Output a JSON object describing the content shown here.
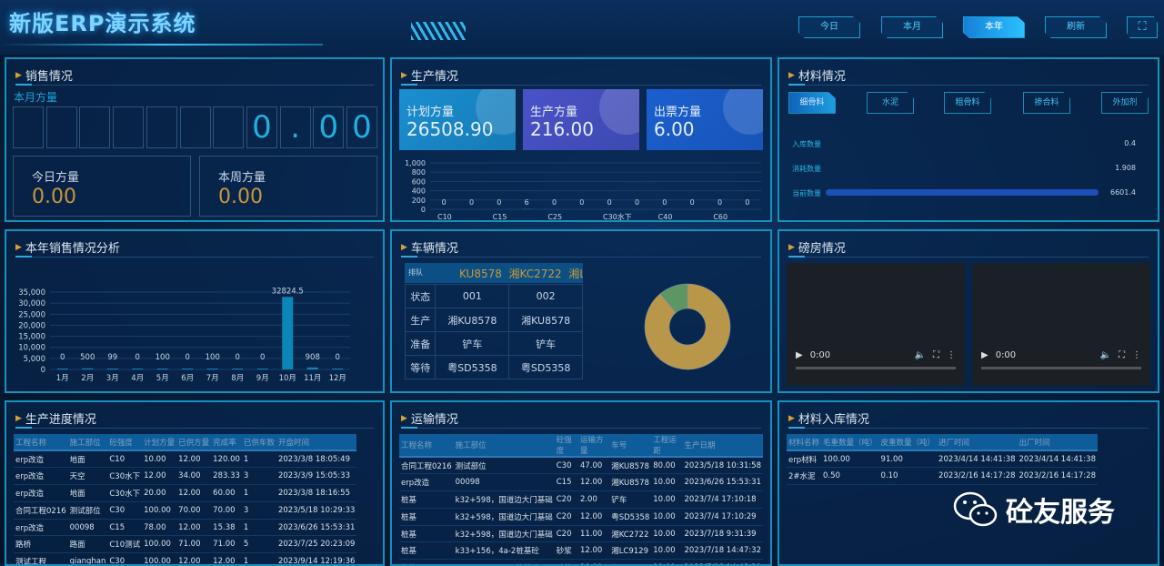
{
  "header": {
    "title": "新版ERP演示系统",
    "buttons": [
      {
        "label": "今日"
      },
      {
        "label": "本月"
      },
      {
        "label": "本年",
        "active": true
      },
      {
        "label": "刷新"
      }
    ],
    "fullscreen_icon": "expand-icon"
  },
  "sales": {
    "title": "销售情况",
    "month_label": "本月方量",
    "month_digits": [
      "",
      "",
      "",
      "",
      "",
      "",
      "",
      "0",
      ".",
      "0",
      "0"
    ],
    "today_label": "今日方量",
    "today_value": "0.00",
    "week_label": "本周方量",
    "week_value": "0.00"
  },
  "production": {
    "title": "生产情况",
    "cards": [
      {
        "label": "计划方量",
        "value": "26508.90",
        "color": "#1a8fd0"
      },
      {
        "label": "生产方量",
        "value": "216.00",
        "color": "#4a52c8"
      },
      {
        "label": "出票方量",
        "value": "6.00",
        "color": "#1b5fd0"
      }
    ]
  },
  "materials": {
    "title": "材料情况",
    "tabs": [
      {
        "label": "细骨料",
        "active": true
      },
      {
        "label": "水泥"
      },
      {
        "label": "粗骨料"
      },
      {
        "label": "掺合料"
      },
      {
        "label": "外加剂"
      }
    ],
    "rows": [
      {
        "label": "入库数量",
        "value": "0.4"
      },
      {
        "label": "消耗数量",
        "value": "1.908"
      },
      {
        "label": "当前数量",
        "value": "6601.4",
        "bar": 1.0
      }
    ]
  },
  "annual": {
    "title": "本年销售情况分析"
  },
  "vehicles": {
    "title": "车辆情况",
    "queue_label": "排队",
    "queue_scroll": "KU8578  湘KC2722  湘L",
    "rows": [
      [
        "状态",
        "001",
        "002"
      ],
      [
        "生产",
        "湘KU8578",
        "湘KU8578"
      ],
      [
        "准备",
        "铲车",
        "铲车"
      ],
      [
        "等待",
        "粤SD5358",
        "粤SD5358"
      ]
    ],
    "donut": [
      {
        "share": 0.89,
        "color": "#b8974a"
      },
      {
        "share": 0.11,
        "color": "#5e9565"
      }
    ]
  },
  "scale": {
    "title": "磅房情况",
    "videos": [
      {
        "time": "0:00"
      },
      {
        "time": "0:00"
      }
    ]
  },
  "progress": {
    "title": "生产进度情况",
    "columns": [
      "工程名称",
      "施工部位",
      "砼强度",
      "计划方量",
      "已供方量",
      "完成率",
      "已供车数",
      "开盘时间"
    ],
    "rows": [
      [
        "erp改造",
        "地面",
        "C10",
        "10.00",
        "12.00",
        "120.00",
        "1",
        "2023/3/8 18:05:49"
      ],
      [
        "erp改造",
        "天空",
        "C30水下",
        "12.00",
        "34.00",
        "283.33",
        "3",
        "2023/3/9 15:05:33"
      ],
      [
        "erp改造",
        "地面",
        "C30水下",
        "20.00",
        "12.00",
        "60.00",
        "1",
        "2023/3/8 18:16:55"
      ],
      [
        "合同工程0216",
        "测试部位",
        "C30",
        "100.00",
        "70.00",
        "70.00",
        "3",
        "2023/5/18 10:29:33"
      ],
      [
        "erp改造",
        "00098",
        "C15",
        "78.00",
        "12.00",
        "15.38",
        "1",
        "2023/6/26 15:53:31"
      ],
      [
        "路桥",
        "路面",
        "C10测试",
        "100.00",
        "71.00",
        "71.00",
        "5",
        "2023/7/25 20:23:09"
      ],
      [
        "测试工程",
        "qianghan",
        "C30",
        "100.00",
        "12.00",
        "12.00",
        "1",
        "2023/9/14 12:19:36"
      ]
    ]
  },
  "transport": {
    "title": "运输情况",
    "columns": [
      "工程名称",
      "施工部位",
      "砼强度",
      "运输方量",
      "车号",
      "工程运距",
      "生产日期"
    ],
    "rows": [
      [
        "合同工程0216",
        "测试部位",
        "C30",
        "47.00",
        "湘KU8578",
        "80.00",
        "2023/5/18 10:31:58"
      ],
      [
        "erp改造",
        "00098",
        "C15",
        "12.00",
        "湘KU8578",
        "10.00",
        "2023/6/26 15:53:31"
      ],
      [
        "桩基",
        "k32+598，国道边大门基础",
        "C20",
        "2.00",
        "铲车",
        "10.00",
        "2023/7/4 17:10:18"
      ],
      [
        "桩基",
        "k32+598，国道边大门基础",
        "C20",
        "12.00",
        "粤SD5358",
        "10.00",
        "2023/7/4 17:10:29"
      ],
      [
        "桩基",
        "k32+598，国道边大门基础",
        "C20",
        "11.00",
        "湘KC2722",
        "10.00",
        "2023/7/18 9:31:39"
      ],
      [
        "桩基",
        "k33+156，4a-2桩基砼",
        "砂浆",
        "12.00",
        "湘LC9129",
        "10.00",
        "2023/7/18 14:47:32"
      ],
      [
        "桩基",
        "k33+156，4a-2桩基砼",
        "砂浆",
        "10.00",
        "湘KU8578",
        "10.00",
        "2023/7/18 14:48:30"
      ]
    ]
  },
  "inbound": {
    "title": "材料入库情况",
    "columns": [
      "材料名称",
      "毛重数量（吨）",
      "皮重数量（吨）",
      "进厂时间",
      "出厂时间"
    ],
    "rows": [
      [
        "erp材料",
        "100.00",
        "91.00",
        "2023/4/14 14:41:38",
        "2023/4/14 14:41:38"
      ],
      [
        "2#水泥",
        "0.50",
        "0.10",
        "2023/2/16 14:17:28",
        "2023/2/16 14:17:28"
      ]
    ]
  },
  "watermark": {
    "text": "砼友服务",
    "icon": "wechat-icon"
  },
  "chart_data": [
    {
      "type": "bar",
      "categories": [
        "1月",
        "2月",
        "3月",
        "4月",
        "5月",
        "6月",
        "7月",
        "8月",
        "9月",
        "10月",
        "11月",
        "12月"
      ],
      "values": [
        0,
        500,
        99,
        0,
        100,
        0,
        100,
        0,
        0,
        32824.5,
        908,
        0
      ],
      "ylim": [
        0,
        35000
      ],
      "yticks": [
        "0",
        "5,000",
        "10,000",
        "15,000",
        "20,000",
        "25,000",
        "30,000",
        "35,000"
      ],
      "grid": true,
      "color": "#0a86b8"
    },
    {
      "type": "bar",
      "categories": [
        "C10",
        "",
        "C15",
        "",
        "C25",
        "",
        "C30水下",
        "",
        "C40",
        "",
        "C60",
        ""
      ],
      "xticks": [
        "C10",
        "C15",
        "C25",
        "C30水下",
        "C40",
        "C60"
      ],
      "values": [
        0,
        0,
        0,
        6,
        0,
        0,
        0,
        0,
        0,
        0,
        0,
        0
      ],
      "ylim": [
        0,
        1000
      ],
      "yticks": [
        "0",
        "200",
        "400",
        "600",
        "800",
        "1,000"
      ],
      "grid": true
    }
  ]
}
